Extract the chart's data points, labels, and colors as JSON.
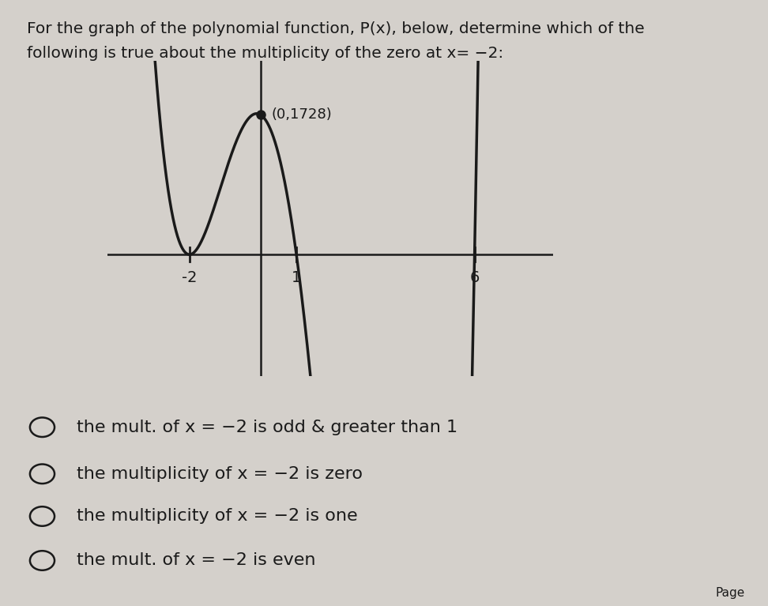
{
  "title_line1": "For the graph of the polynomial function, P(x), below, determine which of the",
  "title_line2": "following is true about the multiplicity of the zero at x= −2:",
  "point_label": "(0,1728)",
  "x_ticks": [
    -2,
    1,
    6
  ],
  "x_tick_labels": [
    "-2",
    "1",
    "6"
  ],
  "options": [
    "the mult. of x = −2 is odd & greater than 1",
    "the multiplicity of x = −2 is zero",
    "the multiplicity of x = −2 is one",
    "the mult. of x = −2 is even"
  ],
  "background_color": "#d4d0cb",
  "curve_color": "#1a1a1a",
  "axis_color": "#1a1a1a",
  "text_color": "#1a1a1a",
  "title_fontsize": 14.5,
  "option_fontsize": 16,
  "annotation_fontsize": 13,
  "tick_fontsize": 14,
  "xlim": [
    -4.3,
    8.2
  ],
  "ylim_low": -1500,
  "ylim_high": 2400
}
